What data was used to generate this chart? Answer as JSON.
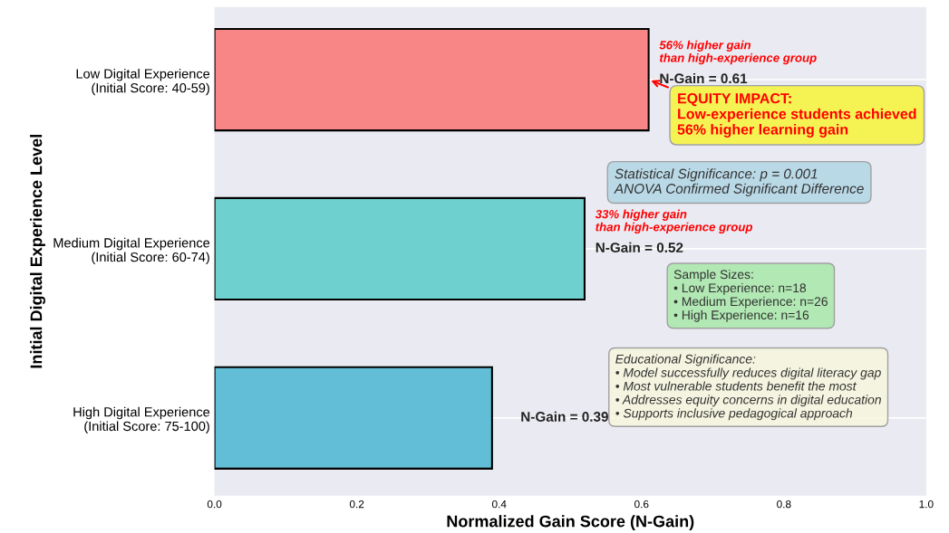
{
  "chart_data": {
    "type": "bar",
    "orientation": "horizontal",
    "categories": [
      "Low Digital Experience\n(Initial Score: 40-59)",
      "Medium Digital Experience\n(Initial Score: 60-74)",
      "High Digital Experience\n(Initial Score: 75-100)"
    ],
    "values": [
      0.61,
      0.52,
      0.39
    ],
    "colors": [
      "#f88687",
      "#6fd1cf",
      "#62bed6"
    ],
    "value_labels": [
      "N-Gain = 0.61",
      "N-Gain = 0.52",
      "N-Gain = 0.39"
    ],
    "xlim": [
      0,
      1
    ],
    "xticks": [
      {
        "value": 0,
        "label": "0.0"
      },
      {
        "value": 0.2,
        "label": "0.2"
      },
      {
        "value": 0.4,
        "label": "0.4"
      },
      {
        "value": 0.6,
        "label": "0.6"
      },
      {
        "value": 0.8,
        "label": "0.8"
      },
      {
        "value": 1,
        "label": "1.0"
      }
    ],
    "xlabel": "Normalized Gain Score (N-Gain)",
    "ylabel": "Initial Digital Experience Level",
    "grid": "y",
    "annotations": [
      "56% higher gain\nthan high-experience group",
      "EQUITY IMPACT:\nLow-experience students achieved\n56% higher learning gain",
      "Statistical Significance: p = 0.001\nANOVA Confirmed Significant Difference",
      "33% higher gain\nthan high-experience group",
      "Sample Sizes:\n• Low Experience: n=18\n• Medium Experience: n=26\n• High Experience: n=16",
      "Educational Significance:\n• Model successfully reduces digital literacy gap\n• Most vulnerable students benefit the most\n• Addresses equity concerns in digital education\n• Supports inclusive pedagogical approach"
    ]
  }
}
